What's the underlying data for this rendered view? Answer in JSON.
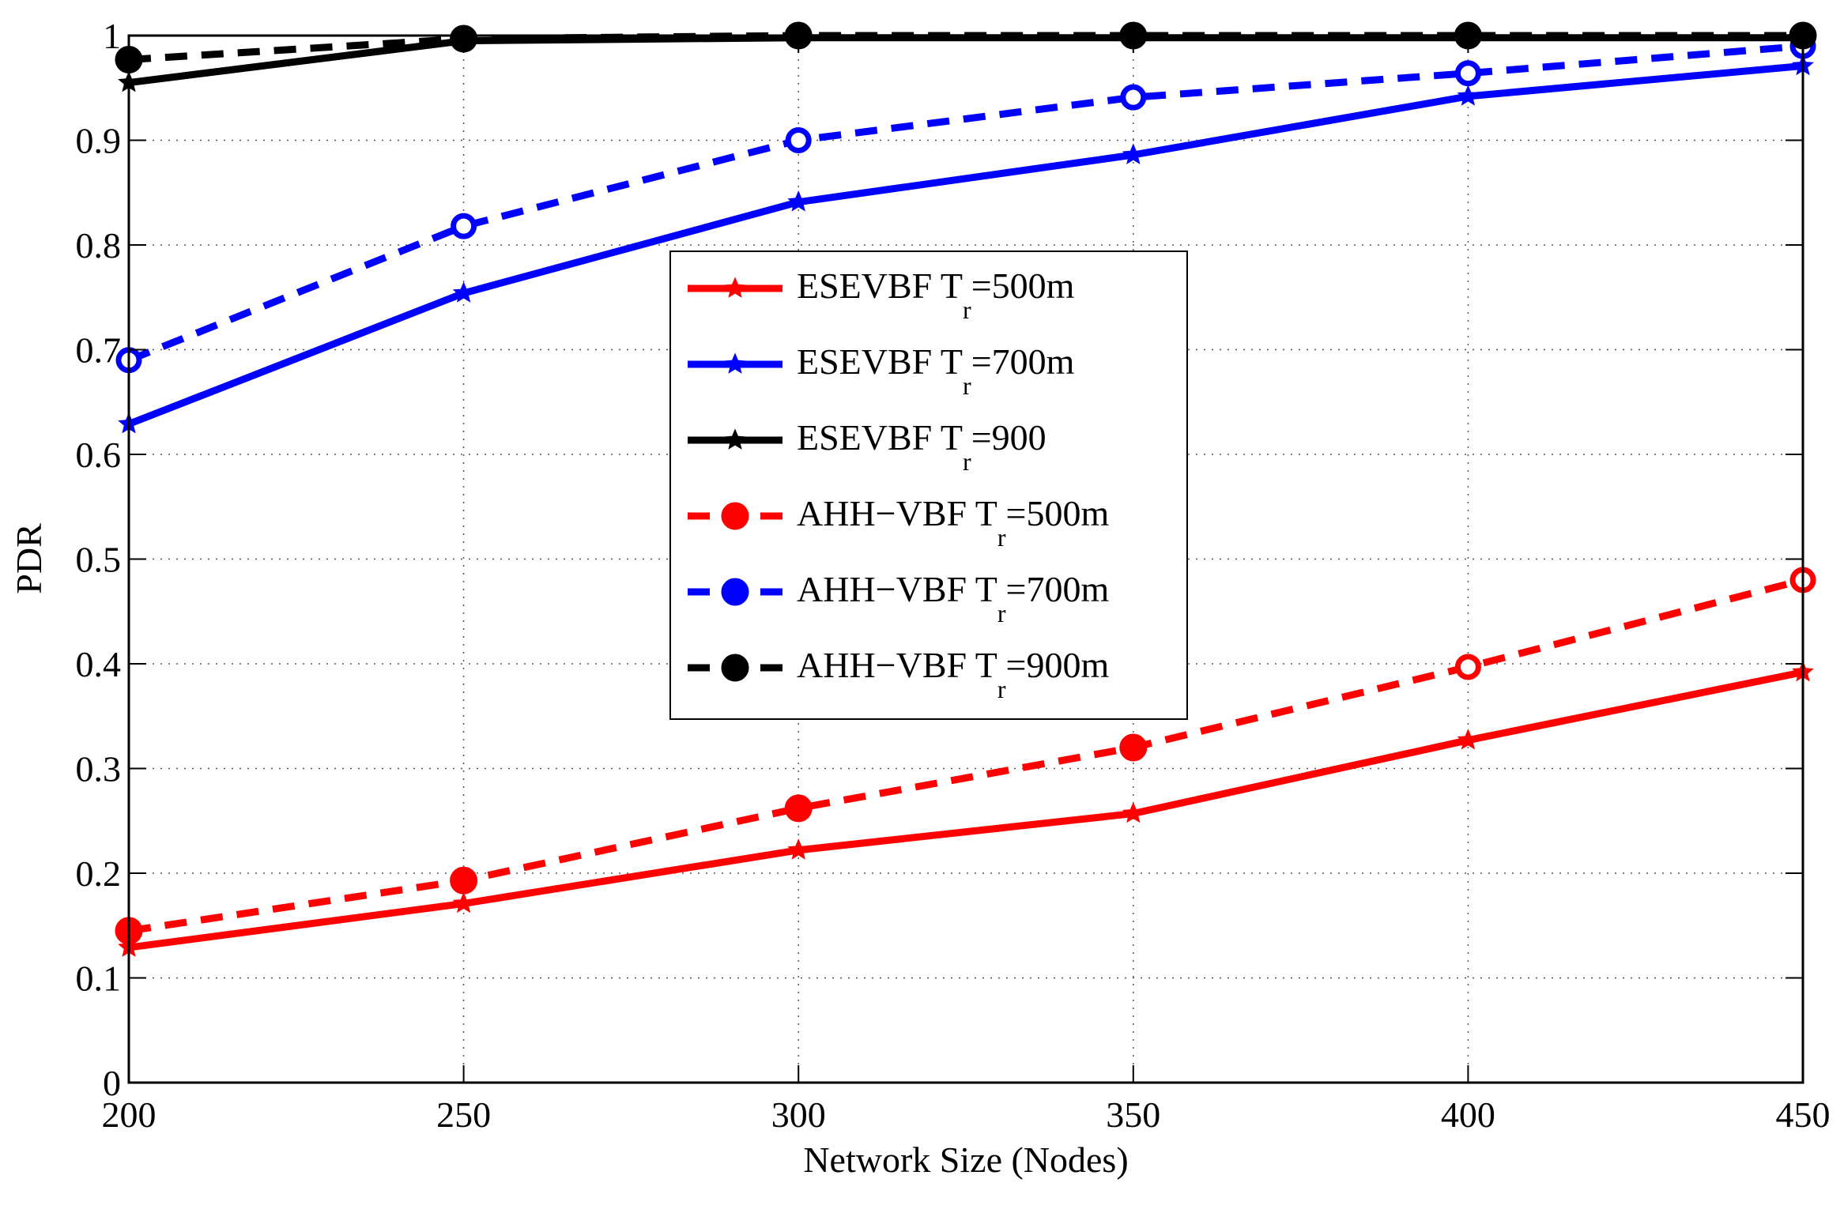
{
  "chart_data": {
    "type": "line",
    "title": "",
    "xlabel": "Network Size (Nodes)",
    "ylabel": "PDR",
    "xlim": [
      200,
      450
    ],
    "ylim": [
      0,
      1
    ],
    "x": [
      200,
      250,
      300,
      350,
      400,
      450
    ],
    "xticks": [
      200,
      250,
      300,
      350,
      400,
      450
    ],
    "yticks": [
      0,
      0.1,
      0.2,
      0.3,
      0.4,
      0.5,
      0.6,
      0.7,
      0.8,
      0.9,
      1
    ],
    "ytick_labels": [
      "0",
      "0.1",
      "0.2",
      "0.3",
      "0.4",
      "0.5",
      "0.6",
      "0.7",
      "0.8",
      "0.9",
      "1"
    ],
    "grid": true,
    "legend_position": "center",
    "series": [
      {
        "name": "ESEVBF T_r=500m",
        "label_main": "ESEVBF T",
        "label_sub": "r",
        "label_tail": "=500m",
        "color": "#ff0000",
        "dash": false,
        "marker": "star",
        "values": [
          0.129,
          0.171,
          0.222,
          0.257,
          0.327,
          0.392
        ]
      },
      {
        "name": "ESEVBF T_r=700m",
        "label_main": "ESEVBF T",
        "label_sub": "r",
        "label_tail": "=700m",
        "color": "#0000ff",
        "dash": false,
        "marker": "star",
        "values": [
          0.629,
          0.754,
          0.841,
          0.886,
          0.942,
          0.971
        ]
      },
      {
        "name": "ESEVBF T_r=900",
        "label_main": "ESEVBF T",
        "label_sub": "r",
        "label_tail": "=900",
        "color": "#000000",
        "dash": false,
        "marker": "star",
        "values": [
          0.955,
          0.995,
          0.998,
          0.998,
          0.998,
          0.998
        ]
      },
      {
        "name": "AHH-VBF T_r=500m",
        "label_main": "AHH−VBF T",
        "label_sub": "r",
        "label_tail": "=500m",
        "color": "#ff0000",
        "dash": true,
        "marker": "circle",
        "values": [
          0.145,
          0.193,
          0.262,
          0.32,
          0.397,
          0.48
        ]
      },
      {
        "name": "AHH-VBF T_r=700m",
        "label_main": "AHH−VBF T",
        "label_sub": "r",
        "label_tail": "=700m",
        "color": "#0000ff",
        "dash": true,
        "marker": "circle",
        "values": [
          0.69,
          0.818,
          0.9,
          0.941,
          0.964,
          0.99
        ]
      },
      {
        "name": "AHH-VBF T_r=900m",
        "label_main": "AHH−VBF T",
        "label_sub": "r",
        "label_tail": "=900m",
        "color": "#000000",
        "dash": true,
        "marker": "circle",
        "values": [
          0.977,
          0.997,
          1.0,
          1.0,
          1.0,
          1.0
        ]
      }
    ]
  }
}
